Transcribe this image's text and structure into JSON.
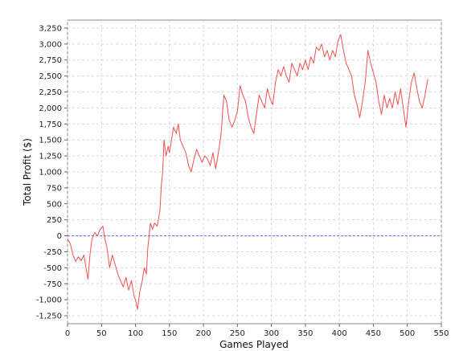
{
  "chart_data": {
    "type": "line",
    "xlabel": "Games Played",
    "ylabel": "Total Profit ($)",
    "xlim": [
      0,
      550
    ],
    "ylim": [
      -1375,
      3375
    ],
    "x_ticks": [
      0,
      50,
      100,
      150,
      200,
      250,
      300,
      350,
      400,
      450,
      500,
      550
    ],
    "x_tick_labels": [
      "0",
      "50",
      "100",
      "150",
      "200",
      "250",
      "300",
      "350",
      "400",
      "450",
      "500",
      "550"
    ],
    "y_ticks": [
      -1250,
      -1000,
      -750,
      -500,
      -250,
      0,
      250,
      500,
      750,
      1000,
      1250,
      1500,
      1750,
      2000,
      2250,
      2500,
      2750,
      3000,
      3250
    ],
    "y_tick_labels": [
      "-1,250",
      "-1,000",
      "-750",
      "-500",
      "-250",
      "0",
      "250",
      "500",
      "750",
      "1,000",
      "1,250",
      "1,500",
      "1,750",
      "2,000",
      "2,250",
      "2,500",
      "2,750",
      "3,000",
      "3,250"
    ],
    "grid": true,
    "baseline": {
      "y": 0,
      "color": "#6a6aff"
    },
    "series": [
      {
        "color": "#f05050",
        "points": [
          [
            0,
            -50
          ],
          [
            4,
            -120
          ],
          [
            8,
            -300
          ],
          [
            12,
            -400
          ],
          [
            16,
            -330
          ],
          [
            20,
            -390
          ],
          [
            24,
            -300
          ],
          [
            28,
            -550
          ],
          [
            30,
            -680
          ],
          [
            33,
            -300
          ],
          [
            36,
            -50
          ],
          [
            40,
            50
          ],
          [
            44,
            0
          ],
          [
            48,
            100
          ],
          [
            52,
            150
          ],
          [
            55,
            -50
          ],
          [
            58,
            -180
          ],
          [
            62,
            -500
          ],
          [
            66,
            -300
          ],
          [
            70,
            -450
          ],
          [
            74,
            -600
          ],
          [
            78,
            -700
          ],
          [
            82,
            -800
          ],
          [
            86,
            -650
          ],
          [
            90,
            -850
          ],
          [
            94,
            -700
          ],
          [
            98,
            -950
          ],
          [
            100,
            -1000
          ],
          [
            103,
            -1150
          ],
          [
            106,
            -900
          ],
          [
            110,
            -700
          ],
          [
            113,
            -500
          ],
          [
            116,
            -600
          ],
          [
            118,
            -200
          ],
          [
            120,
            0
          ],
          [
            122,
            200
          ],
          [
            125,
            100
          ],
          [
            128,
            200
          ],
          [
            132,
            150
          ],
          [
            136,
            400
          ],
          [
            138,
            800
          ],
          [
            140,
            1000
          ],
          [
            142,
            1500
          ],
          [
            145,
            1250
          ],
          [
            148,
            1400
          ],
          [
            150,
            1300
          ],
          [
            153,
            1500
          ],
          [
            156,
            1700
          ],
          [
            160,
            1600
          ],
          [
            163,
            1750
          ],
          [
            166,
            1500
          ],
          [
            170,
            1400
          ],
          [
            174,
            1300
          ],
          [
            178,
            1100
          ],
          [
            182,
            1000
          ],
          [
            186,
            1200
          ],
          [
            190,
            1350
          ],
          [
            194,
            1250
          ],
          [
            198,
            1150
          ],
          [
            202,
            1250
          ],
          [
            206,
            1200
          ],
          [
            210,
            1100
          ],
          [
            214,
            1300
          ],
          [
            218,
            1050
          ],
          [
            222,
            1300
          ],
          [
            226,
            1600
          ],
          [
            228,
            1900
          ],
          [
            230,
            2200
          ],
          [
            234,
            2100
          ],
          [
            238,
            1800
          ],
          [
            242,
            1700
          ],
          [
            246,
            1800
          ],
          [
            250,
            1950
          ],
          [
            254,
            2350
          ],
          [
            258,
            2200
          ],
          [
            262,
            2100
          ],
          [
            266,
            1850
          ],
          [
            270,
            1700
          ],
          [
            274,
            1600
          ],
          [
            278,
            1900
          ],
          [
            282,
            2200
          ],
          [
            286,
            2100
          ],
          [
            290,
            2000
          ],
          [
            294,
            2300
          ],
          [
            298,
            2150
          ],
          [
            302,
            2050
          ],
          [
            306,
            2400
          ],
          [
            310,
            2600
          ],
          [
            314,
            2500
          ],
          [
            318,
            2650
          ],
          [
            322,
            2500
          ],
          [
            326,
            2400
          ],
          [
            330,
            2700
          ],
          [
            334,
            2600
          ],
          [
            338,
            2500
          ],
          [
            342,
            2700
          ],
          [
            346,
            2600
          ],
          [
            350,
            2750
          ],
          [
            354,
            2600
          ],
          [
            358,
            2800
          ],
          [
            362,
            2700
          ],
          [
            366,
            2950
          ],
          [
            370,
            2900
          ],
          [
            374,
            3000
          ],
          [
            378,
            2800
          ],
          [
            382,
            2900
          ],
          [
            386,
            2750
          ],
          [
            390,
            2900
          ],
          [
            394,
            2800
          ],
          [
            398,
            3050
          ],
          [
            402,
            3150
          ],
          [
            406,
            2900
          ],
          [
            410,
            2700
          ],
          [
            414,
            2600
          ],
          [
            418,
            2500
          ],
          [
            422,
            2200
          ],
          [
            426,
            2050
          ],
          [
            430,
            1850
          ],
          [
            434,
            2100
          ],
          [
            438,
            2400
          ],
          [
            442,
            2900
          ],
          [
            446,
            2700
          ],
          [
            450,
            2550
          ],
          [
            454,
            2400
          ],
          [
            458,
            2100
          ],
          [
            462,
            1900
          ],
          [
            466,
            2200
          ],
          [
            470,
            2000
          ],
          [
            474,
            2150
          ],
          [
            478,
            2000
          ],
          [
            482,
            2250
          ],
          [
            486,
            2050
          ],
          [
            490,
            2300
          ],
          [
            494,
            2000
          ],
          [
            498,
            1700
          ],
          [
            502,
            2100
          ],
          [
            506,
            2400
          ],
          [
            510,
            2550
          ],
          [
            514,
            2300
          ],
          [
            518,
            2100
          ],
          [
            522,
            2000
          ],
          [
            526,
            2200
          ],
          [
            530,
            2450
          ]
        ]
      }
    ]
  }
}
